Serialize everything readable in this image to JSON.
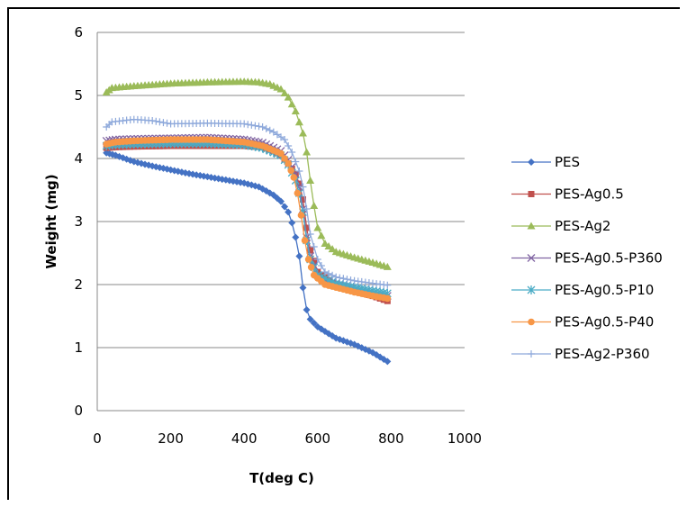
{
  "chart_data": {
    "type": "scatter",
    "title": "",
    "xlabel": "T(deg C)",
    "ylabel": "Weight (mg)",
    "xlim": [
      0,
      1000
    ],
    "ylim": [
      0,
      6
    ],
    "x_ticks": [
      "0",
      "200",
      "400",
      "600",
      "800",
      "1000"
    ],
    "y_ticks": [
      "0",
      "1",
      "2",
      "3",
      "4",
      "5",
      "6"
    ],
    "grid": "horizontal",
    "legend": "right",
    "series": [
      {
        "name": "PES",
        "color": "#4472C4",
        "marker": "diamond",
        "points": [
          [
            25,
            4.09
          ],
          [
            50,
            4.05
          ],
          [
            100,
            3.95
          ],
          [
            150,
            3.88
          ],
          [
            200,
            3.82
          ],
          [
            250,
            3.76
          ],
          [
            300,
            3.71
          ],
          [
            350,
            3.66
          ],
          [
            400,
            3.61
          ],
          [
            440,
            3.55
          ],
          [
            480,
            3.42
          ],
          [
            500,
            3.32
          ],
          [
            520,
            3.15
          ],
          [
            530,
            2.98
          ],
          [
            540,
            2.75
          ],
          [
            550,
            2.45
          ],
          [
            560,
            1.95
          ],
          [
            570,
            1.6
          ],
          [
            580,
            1.45
          ],
          [
            600,
            1.33
          ],
          [
            650,
            1.15
          ],
          [
            700,
            1.05
          ],
          [
            750,
            0.92
          ],
          [
            790,
            0.78
          ]
        ]
      },
      {
        "name": "PES-Ag0.5",
        "color": "#C0504D",
        "marker": "square",
        "points": [
          [
            25,
            4.17
          ],
          [
            50,
            4.18
          ],
          [
            100,
            4.19
          ],
          [
            200,
            4.2
          ],
          [
            300,
            4.2
          ],
          [
            400,
            4.2
          ],
          [
            450,
            4.18
          ],
          [
            480,
            4.12
          ],
          [
            500,
            4.05
          ],
          [
            520,
            3.92
          ],
          [
            540,
            3.75
          ],
          [
            550,
            3.6
          ],
          [
            560,
            3.35
          ],
          [
            570,
            2.9
          ],
          [
            580,
            2.55
          ],
          [
            600,
            2.2
          ],
          [
            650,
            1.98
          ],
          [
            700,
            1.9
          ],
          [
            750,
            1.82
          ],
          [
            790,
            1.74
          ]
        ]
      },
      {
        "name": "PES-Ag2",
        "color": "#9BBB59",
        "marker": "triangle",
        "points": [
          [
            25,
            5.05
          ],
          [
            40,
            5.12
          ],
          [
            100,
            5.15
          ],
          [
            200,
            5.19
          ],
          [
            300,
            5.21
          ],
          [
            400,
            5.22
          ],
          [
            440,
            5.21
          ],
          [
            470,
            5.18
          ],
          [
            500,
            5.1
          ],
          [
            520,
            4.97
          ],
          [
            540,
            4.75
          ],
          [
            560,
            4.4
          ],
          [
            570,
            4.1
          ],
          [
            580,
            3.65
          ],
          [
            590,
            3.25
          ],
          [
            600,
            2.9
          ],
          [
            620,
            2.65
          ],
          [
            650,
            2.52
          ],
          [
            700,
            2.43
          ],
          [
            750,
            2.35
          ],
          [
            790,
            2.28
          ]
        ]
      },
      {
        "name": "PES-Ag0.5-P360",
        "color": "#8064A2",
        "marker": "x",
        "points": [
          [
            25,
            4.28
          ],
          [
            50,
            4.3
          ],
          [
            100,
            4.31
          ],
          [
            200,
            4.32
          ],
          [
            300,
            4.33
          ],
          [
            400,
            4.3
          ],
          [
            450,
            4.25
          ],
          [
            500,
            4.12
          ],
          [
            520,
            3.98
          ],
          [
            540,
            3.75
          ],
          [
            550,
            3.55
          ],
          [
            560,
            3.2
          ],
          [
            570,
            2.75
          ],
          [
            580,
            2.45
          ],
          [
            600,
            2.15
          ],
          [
            650,
            2.0
          ],
          [
            700,
            1.92
          ],
          [
            750,
            1.86
          ],
          [
            790,
            1.82
          ]
        ]
      },
      {
        "name": "PES-Ag0.5-P10",
        "color": "#4BACC6",
        "marker": "star",
        "points": [
          [
            25,
            4.2
          ],
          [
            50,
            4.22
          ],
          [
            100,
            4.23
          ],
          [
            200,
            4.24
          ],
          [
            300,
            4.24
          ],
          [
            400,
            4.22
          ],
          [
            450,
            4.17
          ],
          [
            500,
            4.05
          ],
          [
            520,
            3.9
          ],
          [
            540,
            3.65
          ],
          [
            550,
            3.45
          ],
          [
            560,
            3.15
          ],
          [
            570,
            2.7
          ],
          [
            580,
            2.4
          ],
          [
            600,
            2.15
          ],
          [
            650,
            2.02
          ],
          [
            700,
            1.96
          ],
          [
            750,
            1.9
          ],
          [
            790,
            1.86
          ]
        ]
      },
      {
        "name": "PES-Ag0.5-P40",
        "color": "#F79646",
        "marker": "circle",
        "points": [
          [
            25,
            4.23
          ],
          [
            50,
            4.26
          ],
          [
            100,
            4.28
          ],
          [
            200,
            4.3
          ],
          [
            300,
            4.3
          ],
          [
            400,
            4.26
          ],
          [
            450,
            4.2
          ],
          [
            500,
            4.08
          ],
          [
            520,
            3.92
          ],
          [
            535,
            3.7
          ],
          [
            545,
            3.45
          ],
          [
            555,
            3.1
          ],
          [
            565,
            2.7
          ],
          [
            575,
            2.4
          ],
          [
            590,
            2.15
          ],
          [
            620,
            2.0
          ],
          [
            700,
            1.88
          ],
          [
            750,
            1.82
          ],
          [
            790,
            1.78
          ]
        ]
      },
      {
        "name": "PES-Ag2-P360",
        "color": "#8EA9DB",
        "marker": "plus",
        "points": [
          [
            25,
            4.5
          ],
          [
            40,
            4.58
          ],
          [
            70,
            4.6
          ],
          [
            100,
            4.62
          ],
          [
            150,
            4.6
          ],
          [
            200,
            4.55
          ],
          [
            300,
            4.56
          ],
          [
            400,
            4.55
          ],
          [
            450,
            4.5
          ],
          [
            480,
            4.42
          ],
          [
            510,
            4.3
          ],
          [
            530,
            4.1
          ],
          [
            550,
            3.8
          ],
          [
            560,
            3.55
          ],
          [
            570,
            3.2
          ],
          [
            580,
            2.8
          ],
          [
            600,
            2.4
          ],
          [
            620,
            2.2
          ],
          [
            650,
            2.12
          ],
          [
            700,
            2.06
          ],
          [
            750,
            2.02
          ],
          [
            790,
            1.99
          ]
        ]
      }
    ]
  }
}
